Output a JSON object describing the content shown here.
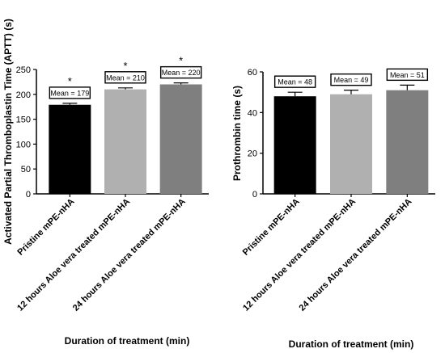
{
  "chart_data": [
    {
      "type": "bar",
      "categories": [
        "Pristine mPE-nHA",
        "12 hours Aloe vera treated mPE-nHA",
        "24 hours Aloe vera treated mPE-nHA"
      ],
      "values": [
        179,
        210,
        220
      ],
      "errors": [
        3,
        3,
        3
      ],
      "bar_colors": [
        "#000000",
        "#b0b0b0",
        "#7f7f7f"
      ],
      "mean_labels": [
        "Mean = 179",
        "Mean = 210",
        "Mean = 220"
      ],
      "significance": [
        "*",
        "*",
        "*"
      ],
      "ylabel": "Activated Partial Thromboplastin Time (APTT) (s)",
      "xlabel": "Duration of treatment  (min)",
      "ylim": [
        0,
        250
      ],
      "yticks": [
        0,
        50,
        100,
        150,
        200,
        250
      ]
    },
    {
      "type": "bar",
      "categories": [
        "Pristine mPE-nHA",
        "12 hours Aloe vera treated mPE-nHA",
        "24 hours Aloe vera treated mPE-nHA"
      ],
      "values": [
        48,
        49,
        51
      ],
      "errors": [
        2,
        2,
        2.5
      ],
      "bar_colors": [
        "#000000",
        "#b0b0b0",
        "#7f7f7f"
      ],
      "mean_labels": [
        "Mean = 48",
        "Mean = 49",
        "Mean = 51"
      ],
      "ylabel": "Prothrombin time (s)",
      "xlabel": "Duration of treatment  (min)",
      "ylim": [
        0,
        60
      ],
      "yticks": [
        0,
        20,
        40,
        60
      ]
    }
  ]
}
